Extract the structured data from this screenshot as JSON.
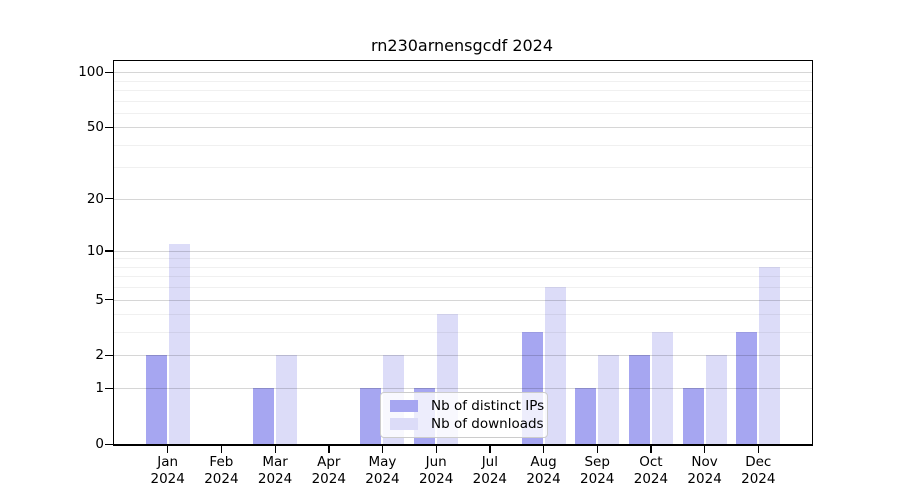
{
  "title": "rn230arnensgcdf 2024",
  "colors": {
    "distinct_ips_bar": "#a6a6f1",
    "downloads_bar": "#dcdcf8",
    "grid_major": "rgba(0,0,0,0.16)",
    "grid_minor": "rgba(0,0,0,0.06)",
    "axis": "#000000",
    "legend_border": "#cccccc"
  },
  "legend": {
    "items": [
      {
        "label": "Nb of distinct IPs",
        "series": "distinct_ips"
      },
      {
        "label": "Nb of downloads",
        "series": "downloads"
      }
    ]
  },
  "y_axis": {
    "tick_values": [
      0,
      1,
      2,
      5,
      10,
      20,
      50,
      100
    ],
    "tick_labels": [
      "0",
      "1",
      "2",
      "5",
      "10",
      "20",
      "50",
      "100"
    ],
    "minor_tick_values": [
      3,
      4,
      6,
      7,
      8,
      9,
      30,
      40,
      60,
      70,
      80,
      90
    ]
  },
  "x_axis": {
    "year": "2024",
    "categories": [
      "Jan",
      "Feb",
      "Mar",
      "Apr",
      "May",
      "Jun",
      "Jul",
      "Aug",
      "Sep",
      "Oct",
      "Nov",
      "Dec"
    ]
  },
  "chart_data": {
    "type": "bar",
    "title": "rn230arnensgcdf 2024",
    "categories": [
      "Jan 2024",
      "Feb 2024",
      "Mar 2024",
      "Apr 2024",
      "May 2024",
      "Jun 2024",
      "Jul 2024",
      "Aug 2024",
      "Sep 2024",
      "Oct 2024",
      "Nov 2024",
      "Dec 2024"
    ],
    "series": [
      {
        "name": "Nb of distinct IPs",
        "color": "#a6a6f1",
        "values": [
          2,
          0,
          1,
          0,
          1,
          1,
          0,
          3,
          1,
          2,
          1,
          3
        ]
      },
      {
        "name": "Nb of downloads",
        "color": "#dcdcf8",
        "values": [
          11,
          0,
          2,
          0,
          2,
          4,
          0,
          6,
          2,
          3,
          2,
          8
        ]
      }
    ],
    "xlabel": "",
    "ylabel": "",
    "y_scale": "log10(1+x)",
    "y_ticks": [
      0,
      1,
      2,
      5,
      10,
      20,
      50,
      100
    ],
    "ylim": [
      0,
      115
    ],
    "grid": true,
    "legend_position": "inside-bottom-center"
  }
}
